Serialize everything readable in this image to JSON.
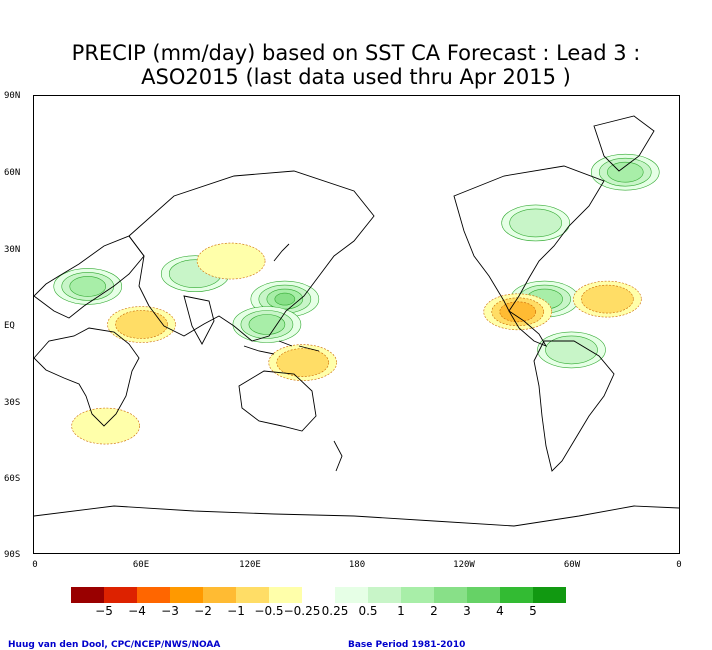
{
  "title_line1": "PRECIP (mm/day) based on SST CA Forecast : Lead 3 :",
  "title_line2": "ASO2015 (last data used thru Apr 2015 )",
  "lat_labels": [
    "90N",
    "60N",
    "30N",
    "EQ",
    "30S",
    "60S",
    "90S"
  ],
  "lon_labels": [
    "0",
    "60E",
    "120E",
    "180",
    "120W",
    "60W",
    "0"
  ],
  "colorbar": {
    "colors": [
      "#990000",
      "#dd2200",
      "#ff6600",
      "#ff9900",
      "#ffbb33",
      "#ffdd66",
      "#ffffaa",
      "#ffffff",
      "#e6ffe6",
      "#c8f5c8",
      "#a8eea8",
      "#88e088",
      "#66d266",
      "#33bb33",
      "#119911"
    ],
    "labels": [
      "−5",
      "−4",
      "−3",
      "−2",
      "−1",
      "−0.5",
      "−0.25",
      "0.25",
      "0.5",
      "1",
      "2",
      "3",
      "4",
      "5"
    ]
  },
  "credit_left": "Huug van den Dool, CPC/NCEP/NWS/NOAA",
  "credit_right": "Base Period 1981-2010",
  "regions": [
    {
      "lon": 30,
      "lat": 15,
      "level": "wet",
      "value": 2
    },
    {
      "lon": 90,
      "lat": 20,
      "level": "wet",
      "value": 1
    },
    {
      "lon": 140,
      "lat": 10,
      "level": "wet",
      "value": 3
    },
    {
      "lon": 130,
      "lat": 0,
      "level": "wet",
      "value": 2
    },
    {
      "lon": -75,
      "lat": 10,
      "level": "wet",
      "value": 2
    },
    {
      "lon": -60,
      "lat": -10,
      "level": "wet",
      "value": 1
    },
    {
      "lon": -80,
      "lat": 40,
      "level": "wet",
      "value": 1
    },
    {
      "lon": -30,
      "lat": 60,
      "level": "wet",
      "value": 2
    },
    {
      "lon": 60,
      "lat": 0,
      "level": "dry",
      "value": -1
    },
    {
      "lon": 150,
      "lat": -15,
      "level": "dry",
      "value": -1
    },
    {
      "lon": -40,
      "lat": 10,
      "level": "dry",
      "value": -1
    },
    {
      "lon": -90,
      "lat": 5,
      "level": "dry",
      "value": -2
    },
    {
      "lon": 40,
      "lat": -40,
      "level": "dry",
      "value": -0.5
    },
    {
      "lon": 110,
      "lat": 25,
      "level": "dry",
      "value": -0.5
    }
  ]
}
